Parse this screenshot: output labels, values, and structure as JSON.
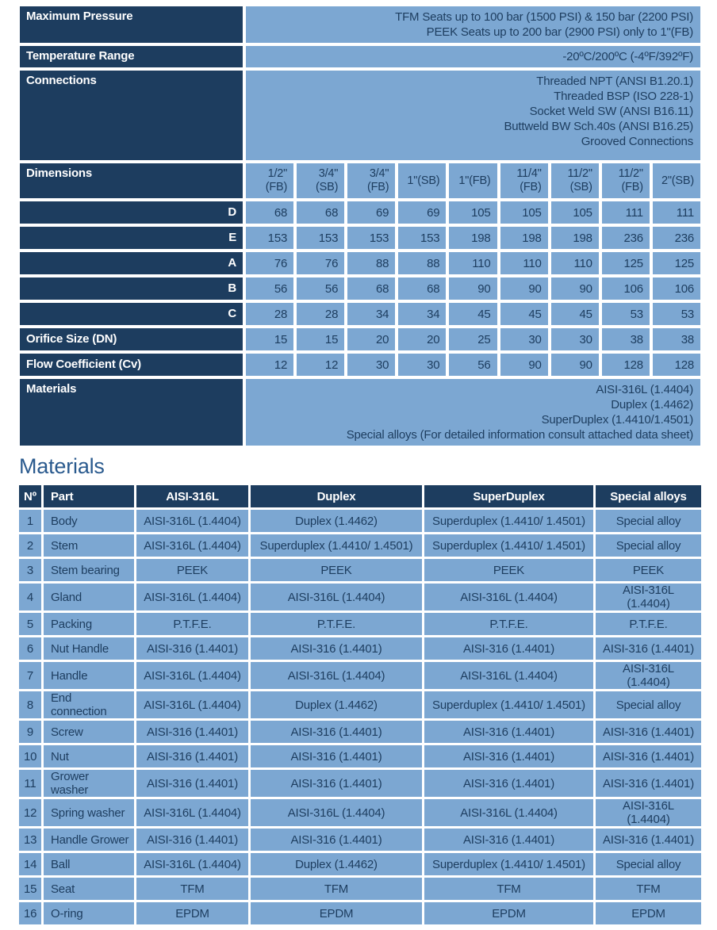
{
  "colors": {
    "navy": "#1d3d5f",
    "blue": "#7ca7d2",
    "text_on_blue": "#1d3d5f",
    "text_on_navy": "#ffffff",
    "title": "#2a5a8e",
    "page": "#ffffff"
  },
  "spec_table": {
    "rows": [
      {
        "kind": "span",
        "label": "Maximum Pressure",
        "lines": [
          "TFM Seats up to 100 bar (1500 PSI) & 150 bar (2200 PSI)",
          "PEEK Seats up to 200 bar (2900 PSI) only to 1\"(FB)"
        ]
      },
      {
        "kind": "span",
        "label": "Temperature Range",
        "lines": [
          "-20ºC/200ºC (-4ºF/392ºF)"
        ]
      },
      {
        "kind": "span",
        "label": "Connections",
        "lines": [
          "Threaded NPT (ANSI B1.20.1)",
          "Threaded BSP (ISO 228-1)",
          "Socket Weld SW (ANSI B16.11)",
          "Buttweld BW Sch.40s (ANSI B16.25)",
          "Grooved Connections"
        ]
      },
      {
        "kind": "header",
        "label": "Dimensions",
        "cells": [
          [
            "1/2\"",
            "(FB)"
          ],
          [
            "3/4\"",
            "(SB)"
          ],
          [
            "3/4\"",
            "(FB)"
          ],
          [
            "1\"(SB)"
          ],
          [
            "1\"(FB)"
          ],
          [
            "11/4\"",
            "(FB)"
          ],
          [
            "11/2\"",
            "(SB)"
          ],
          [
            "11/2\"",
            "(FB)"
          ],
          [
            "2\"(SB)"
          ]
        ]
      },
      {
        "kind": "cols",
        "label": "D",
        "align": "right",
        "cells": [
          "68",
          "68",
          "69",
          "69",
          "105",
          "105",
          "105",
          "111",
          "111"
        ]
      },
      {
        "kind": "cols",
        "label": "E",
        "align": "right",
        "cells": [
          "153",
          "153",
          "153",
          "153",
          "198",
          "198",
          "198",
          "236",
          "236"
        ]
      },
      {
        "kind": "cols",
        "label": "A",
        "align": "right",
        "cells": [
          "76",
          "76",
          "88",
          "88",
          "110",
          "110",
          "110",
          "125",
          "125"
        ]
      },
      {
        "kind": "cols",
        "label": "B",
        "align": "right",
        "cells": [
          "56",
          "56",
          "68",
          "68",
          "90",
          "90",
          "90",
          "106",
          "106"
        ]
      },
      {
        "kind": "cols",
        "label": "C",
        "align": "right",
        "cells": [
          "28",
          "28",
          "34",
          "34",
          "45",
          "45",
          "45",
          "53",
          "53"
        ]
      },
      {
        "kind": "cols",
        "label": "Orifice Size (DN)",
        "align": "left",
        "cells": [
          "15",
          "15",
          "20",
          "20",
          "25",
          "30",
          "30",
          "38",
          "38"
        ]
      },
      {
        "kind": "cols",
        "label": "Flow Coefficient (Cv)",
        "align": "left",
        "cells": [
          "12",
          "12",
          "30",
          "30",
          "56",
          "90",
          "90",
          "128",
          "128"
        ]
      },
      {
        "kind": "span",
        "label": "Materials",
        "lines": [
          "AISI-316L (1.4404)",
          "Duplex (1.4462)",
          "SuperDuplex (1.4410/1.4501)",
          "Special alloys (For detailed information consult attached data sheet)"
        ]
      }
    ]
  },
  "materials_section": {
    "title": "Materials",
    "table": {
      "headers": [
        "Nº",
        "Part",
        "AISI-316L",
        "Duplex",
        "SuperDuplex",
        "Special alloys"
      ],
      "rows": [
        [
          "1",
          "Body",
          "AISI-316L (1.4404)",
          "Duplex (1.4462)",
          "Superduplex (1.4410/ 1.4501)",
          "Special alloy"
        ],
        [
          "2",
          "Stem",
          "AISI-316L (1.4404)",
          "Superduplex (1.4410/ 1.4501)",
          "Superduplex (1.4410/ 1.4501)",
          "Special alloy"
        ],
        [
          "3",
          "Stem bearing",
          "PEEK",
          "PEEK",
          "PEEK",
          "PEEK"
        ],
        [
          "4",
          "Gland",
          "AISI-316L (1.4404)",
          "AISI-316L (1.4404)",
          "AISI-316L (1.4404)",
          "AISI-316L (1.4404)"
        ],
        [
          "5",
          "Packing",
          "P.T.F.E.",
          "P.T.F.E.",
          "P.T.F.E.",
          "P.T.F.E."
        ],
        [
          "6",
          "Nut Handle",
          "AISI-316 (1.4401)",
          "AISI-316 (1.4401)",
          "AISI-316 (1.4401)",
          "AISI-316 (1.4401)"
        ],
        [
          "7",
          "Handle",
          "AISI-316L (1.4404)",
          "AISI-316L (1.4404)",
          "AISI-316L (1.4404)",
          "AISI-316L (1.4404)"
        ],
        [
          "8",
          "End connection",
          "AISI-316L (1.4404)",
          "Duplex (1.4462)",
          "Superduplex (1.4410/ 1.4501)",
          "Special alloy"
        ],
        [
          "9",
          "Screw",
          "AISI-316 (1.4401)",
          "AISI-316 (1.4401)",
          "AISI-316 (1.4401)",
          "AISI-316 (1.4401)"
        ],
        [
          "10",
          "Nut",
          "AISI-316 (1.4401)",
          "AISI-316 (1.4401)",
          "AISI-316 (1.4401)",
          "AISI-316 (1.4401)"
        ],
        [
          "11",
          "Grower washer",
          "AISI-316 (1.4401)",
          "AISI-316 (1.4401)",
          "AISI-316 (1.4401)",
          "AISI-316 (1.4401)"
        ],
        [
          "12",
          "Spring washer",
          "AISI-316L (1.4404)",
          "AISI-316L (1.4404)",
          "AISI-316L (1.4404)",
          "AISI-316L (1.4404)"
        ],
        [
          "13",
          "Handle Grower",
          "AISI-316 (1.4401)",
          "AISI-316 (1.4401)",
          "AISI-316 (1.4401)",
          "AISI-316 (1.4401)"
        ],
        [
          "14",
          "Ball",
          "AISI-316L (1.4404)",
          "Duplex (1.4462)",
          "Superduplex (1.4410/ 1.4501)",
          "Special alloy"
        ],
        [
          "15",
          "Seat",
          "TFM",
          "TFM",
          "TFM",
          "TFM"
        ],
        [
          "16",
          "O-ring",
          "EPDM",
          "EPDM",
          "EPDM",
          "EPDM"
        ]
      ]
    }
  }
}
